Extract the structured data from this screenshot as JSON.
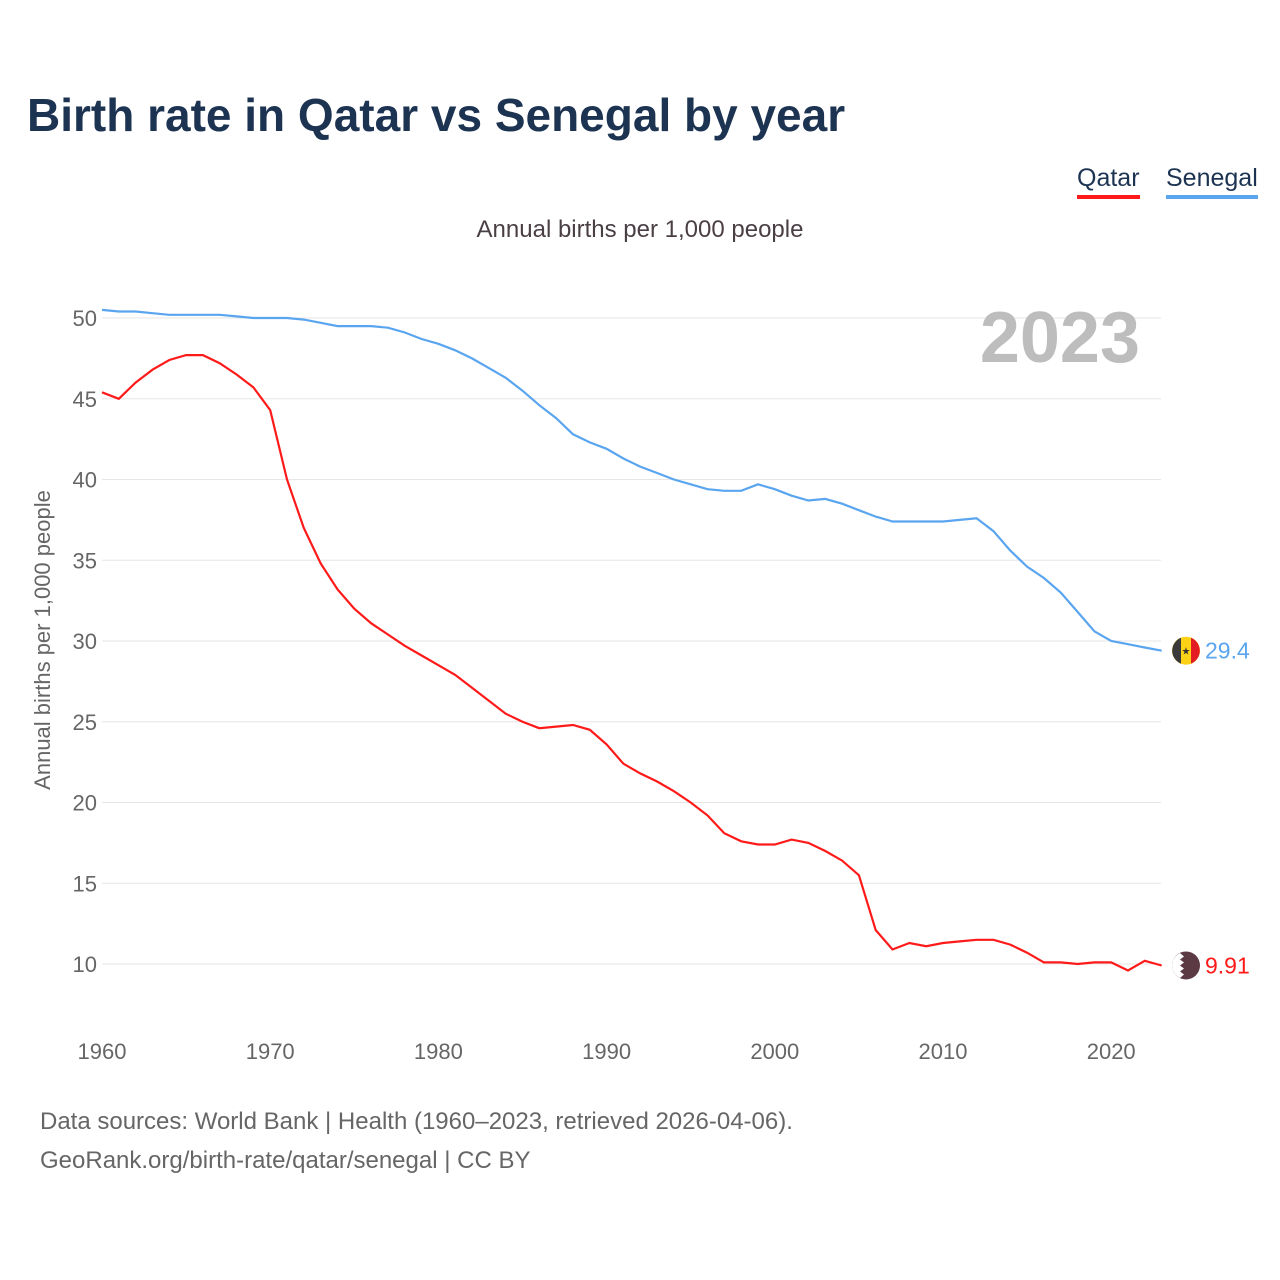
{
  "title": "Birth rate in Qatar vs Senegal by year",
  "subtitle": "Annual births per 1,000 people",
  "year_watermark": "2023",
  "footer": {
    "line1": "Data sources: World Bank | Health (1960–2023, retrieved 2026-04-06).",
    "line2": "GeoRank.org/birth-rate/qatar/senegal | CC BY"
  },
  "chart_data": {
    "type": "line",
    "title": "Birth rate in Qatar vs Senegal by year",
    "xlabel": "",
    "ylabel": "Annual births per 1,000 people",
    "xlim": [
      1960,
      2023
    ],
    "ylim": [
      7,
      52
    ],
    "xticks": [
      1960,
      1970,
      1980,
      1990,
      2000,
      2010,
      2020
    ],
    "yticks": [
      10,
      15,
      20,
      25,
      30,
      35,
      40,
      45,
      50
    ],
    "grid": true,
    "legend": "top-right",
    "x": [
      1960,
      1961,
      1962,
      1963,
      1964,
      1965,
      1966,
      1967,
      1968,
      1969,
      1970,
      1971,
      1972,
      1973,
      1974,
      1975,
      1976,
      1977,
      1978,
      1979,
      1980,
      1981,
      1982,
      1983,
      1984,
      1985,
      1986,
      1987,
      1988,
      1989,
      1990,
      1991,
      1992,
      1993,
      1994,
      1995,
      1996,
      1997,
      1998,
      1999,
      2000,
      2001,
      2002,
      2003,
      2004,
      2005,
      2006,
      2007,
      2008,
      2009,
      2010,
      2011,
      2012,
      2013,
      2014,
      2015,
      2016,
      2017,
      2018,
      2019,
      2020,
      2021,
      2022,
      2023
    ],
    "series": [
      {
        "name": "Qatar",
        "color": "#ff1a1a",
        "end_label": "9.91",
        "values": [
          45.4,
          45.0,
          46.0,
          46.8,
          47.4,
          47.7,
          47.7,
          47.2,
          46.5,
          45.7,
          44.3,
          40.0,
          37.0,
          34.8,
          33.2,
          32.0,
          31.1,
          30.4,
          29.7,
          29.1,
          28.5,
          27.9,
          27.1,
          26.3,
          25.5,
          25.0,
          24.6,
          24.7,
          24.8,
          24.5,
          23.6,
          22.4,
          21.8,
          21.3,
          20.7,
          20.0,
          19.2,
          18.1,
          17.6,
          17.4,
          17.4,
          17.7,
          17.5,
          17.0,
          16.4,
          15.5,
          12.1,
          10.9,
          11.3,
          11.1,
          11.3,
          11.4,
          11.5,
          11.5,
          11.2,
          10.7,
          10.1,
          10.1,
          10.0,
          10.1,
          10.1,
          9.6,
          10.2,
          9.91
        ]
      },
      {
        "name": "Senegal",
        "color": "#5aa5ef",
        "end_label": "29.4",
        "values": [
          50.5,
          50.4,
          50.4,
          50.3,
          50.2,
          50.2,
          50.2,
          50.2,
          50.1,
          50.0,
          50.0,
          50.0,
          49.9,
          49.7,
          49.5,
          49.5,
          49.5,
          49.4,
          49.1,
          48.7,
          48.4,
          48.0,
          47.5,
          46.9,
          46.3,
          45.5,
          44.6,
          43.8,
          42.8,
          42.3,
          41.9,
          41.3,
          40.8,
          40.4,
          40.0,
          39.7,
          39.4,
          39.3,
          39.3,
          39.7,
          39.4,
          39.0,
          38.7,
          38.8,
          38.5,
          38.1,
          37.7,
          37.4,
          37.4,
          37.4,
          37.4,
          37.5,
          37.6,
          36.8,
          35.6,
          34.6,
          33.9,
          33.0,
          31.8,
          30.6,
          30.0,
          29.8,
          29.6,
          29.4
        ]
      }
    ]
  }
}
